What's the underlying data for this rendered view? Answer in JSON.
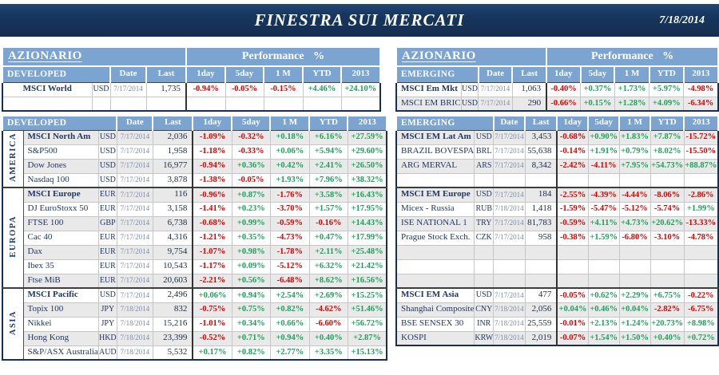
{
  "titlebar": {
    "title": "FINESTRA SUI MERCATI",
    "date": "7/18/2014"
  },
  "colors": {
    "titlebar_navy": "#17375E",
    "header_blue": "#7BA4D0",
    "stripe_gray": "#E9E9E9",
    "negative_red": "#E00000",
    "positive_green": "#1FA15B",
    "name_navy": "#1F3864",
    "date_text": "#7C8DA6",
    "outer_border": "#16304F",
    "dark_divider": "#333333"
  },
  "perf_header": "Performance %",
  "columns": [
    "Date",
    "Last",
    "1day",
    "5day",
    "1 M",
    "YTD",
    "2013"
  ],
  "tables": [
    {
      "id": "developed-summary",
      "title_row": true,
      "section": "AZIONARIO",
      "band": "DEVELOPED",
      "group_col": false,
      "stripe_odd": false,
      "groups": [
        {
          "label": null,
          "rows": [
            {
              "name": "MSCI World",
              "bold": true,
              "center": true,
              "ccy": "USD",
              "date": "7/17/2014",
              "last": "1,735",
              "vals": [
                "-0.94%",
                "-0.05%",
                "-0.15%",
                "+4.46%",
                "+24.10%"
              ]
            },
            {
              "name": "",
              "ccy": "",
              "date": "",
              "last": "",
              "vals": [
                "",
                "",
                "",
                "",
                ""
              ],
              "nostripe": true
            }
          ]
        }
      ]
    },
    {
      "id": "developed-main",
      "title_row": false,
      "band": "DEVELOPED",
      "group_col": true,
      "stripe_odd": true,
      "groups": [
        {
          "label": "AMERICA",
          "rows": [
            {
              "name": "MSCI North Am",
              "bold": true,
              "ccy": "USD",
              "date": "7/17/2014",
              "last": "2,036",
              "vals": [
                "-1.09%",
                "-0.32%",
                "+0.18%",
                "+6.16%",
                "+27.59%"
              ]
            },
            {
              "name": "S&P500",
              "ccy": "USD",
              "date": "7/17/2014",
              "last": "1,958",
              "vals": [
                "-1.18%",
                "-0.33%",
                "+0.06%",
                "+5.94%",
                "+29.60%"
              ]
            },
            {
              "name": "Dow Jones",
              "ccy": "USD",
              "date": "7/17/2014",
              "last": "16,977",
              "vals": [
                "-0.94%",
                "+0.36%",
                "+0.42%",
                "+2.41%",
                "+26.50%"
              ]
            },
            {
              "name": "Nasdaq 100",
              "ccy": "USD",
              "date": "7/17/2014",
              "last": "3,878",
              "vals": [
                "-1.38%",
                "-0.05%",
                "+1.93%",
                "+7.96%",
                "+38.32%"
              ]
            }
          ]
        },
        {
          "label": "EUROPA",
          "rows": [
            {
              "name": "MSCI Europe",
              "bold": true,
              "ccy": "EUR",
              "date": "7/17/2014",
              "last": "116",
              "vals": [
                "-0.96%",
                "+0.87%",
                "-1.76%",
                "+3.58%",
                "+16.43%"
              ]
            },
            {
              "name": "DJ EuroStoxx 50",
              "ccy": "EUR",
              "date": "7/17/2014",
              "last": "3,158",
              "vals": [
                "-1.41%",
                "+0.23%",
                "-3.70%",
                "+1.57%",
                "+17.95%"
              ]
            },
            {
              "name": "FTSE 100",
              "ccy": "GBP",
              "date": "7/17/2014",
              "last": "6,738",
              "vals": [
                "-0.68%",
                "+0.99%",
                "-0.59%",
                "-0.16%",
                "+14.43%"
              ]
            },
            {
              "name": "Cac 40",
              "ccy": "EUR",
              "date": "7/17/2014",
              "last": "4,316",
              "vals": [
                "-1.21%",
                "+0.35%",
                "-4.73%",
                "+0.47%",
                "+17.99%"
              ]
            },
            {
              "name": "Dax",
              "ccy": "EUR",
              "date": "7/17/2014",
              "last": "9,754",
              "vals": [
                "-1.07%",
                "+0.98%",
                "-1.78%",
                "+2.11%",
                "+25.48%"
              ]
            },
            {
              "name": "Ibex 35",
              "ccy": "EUR",
              "date": "7/17/2014",
              "last": "10,543",
              "vals": [
                "-1.17%",
                "+0.09%",
                "-5.12%",
                "+6.32%",
                "+21.42%"
              ]
            },
            {
              "name": "Ftse MiB",
              "ccy": "EUR",
              "date": "7/17/2014",
              "last": "20,603",
              "vals": [
                "-2.21%",
                "+0.56%",
                "-6.48%",
                "+8.62%",
                "+16.56%"
              ]
            }
          ]
        },
        {
          "label": "ASIA",
          "rows": [
            {
              "name": "MSCI Pacific",
              "bold": true,
              "ccy": "USD",
              "date": "7/17/2014",
              "last": "2,496",
              "vals": [
                "+0.06%",
                "+0.94%",
                "+2.54%",
                "+2.69%",
                "+15.25%"
              ]
            },
            {
              "name": "Topix 100",
              "ccy": "JPY",
              "date": "7/18/2014",
              "last": "832",
              "vals": [
                "-0.75%",
                "+0.75%",
                "+0.82%",
                "-4.62%",
                "+51.46%"
              ]
            },
            {
              "name": "Nikkei",
              "ccy": "JPY",
              "date": "7/18/2014",
              "last": "15,216",
              "vals": [
                "-1.01%",
                "+0.34%",
                "+0.66%",
                "-6.60%",
                "+56.72%"
              ]
            },
            {
              "name": "Hong Kong",
              "ccy": "HKD",
              "date": "7/18/2014",
              "last": "23,399",
              "vals": [
                "-0.52%",
                "+0.71%",
                "+0.94%",
                "+0.40%",
                "+2.87%"
              ]
            },
            {
              "name": "S&P/ASX Australia",
              "ccy": "AUD",
              "date": "7/18/2014",
              "last": "5,532",
              "vals": [
                "+0.17%",
                "+0.82%",
                "+2.77%",
                "+3.35%",
                "+15.13%"
              ]
            }
          ]
        }
      ]
    },
    {
      "id": "emerging-summary",
      "title_row": true,
      "section": "AZIONARIO",
      "band": "EMERGING",
      "group_col": false,
      "stripe_odd": false,
      "groups": [
        {
          "label": null,
          "rows": [
            {
              "name": "MSCI Em Mkt",
              "bold": true,
              "ccy": "USD",
              "date": "7/17/2014",
              "last": "1,063",
              "vals": [
                "-0.40%",
                "+0.37%",
                "+1.73%",
                "+5.97%",
                "-4.98%"
              ]
            },
            {
              "name": "MSCI EM BRIC",
              "ccy": "USD",
              "date": "7/17/2014",
              "last": "290",
              "vals": [
                "-0.66%",
                "+0.15%",
                "+1.28%",
                "+4.09%",
                "-6.34%"
              ]
            }
          ]
        }
      ]
    },
    {
      "id": "emerging-main",
      "title_row": false,
      "band": "EMERGING",
      "group_col": false,
      "stripe_odd": true,
      "groups": [
        {
          "label": null,
          "rows": [
            {
              "name": "MSCI EM Lat Am",
              "bold": true,
              "ccy": "USD",
              "date": "7/17/2014",
              "last": "3,453",
              "vals": [
                "-0.68%",
                "+0.90%",
                "+1.83%",
                "+7.87%",
                "-15.72%"
              ]
            },
            {
              "name": "BRAZIL BOVESPA",
              "ccy": "BRL",
              "date": "7/17/2014",
              "last": "55,638",
              "vals": [
                "-0.14%",
                "+1.91%",
                "+0.79%",
                "+8.02%",
                "-15.50%"
              ]
            },
            {
              "name": "ARG MERVAL",
              "ccy": "ARS",
              "date": "7/17/2014",
              "last": "8,342",
              "vals": [
                "-2.42%",
                "-4.11%",
                "+7.95%",
                "+54.73%",
                "+88.87%"
              ]
            },
            {
              "name": "",
              "ccy": "",
              "date": "",
              "last": "",
              "vals": [
                "",
                "",
                "",
                "",
                ""
              ]
            }
          ]
        },
        {
          "label": null,
          "rows": [
            {
              "name": "MSCI EM Europe",
              "bold": true,
              "ccy": "USD",
              "date": "7/17/2014",
              "last": "184",
              "vals": [
                "-2.55%",
                "-4.39%",
                "-4.44%",
                "-8.06%",
                "-2.86%"
              ]
            },
            {
              "name": "Micex - Russia",
              "ccy": "RUB",
              "date": "7/18/2014",
              "last": "1,418",
              "vals": [
                "-1.59%",
                "-5.47%",
                "-5.12%",
                "-5.74%",
                "+1.99%"
              ]
            },
            {
              "name": "ISE NATIONAL 1",
              "ccy": "TRY",
              "date": "7/17/2014",
              "last": "81,783",
              "vals": [
                "-0.59%",
                "+4.11%",
                "+4.73%",
                "+20.62%",
                "-13.33%"
              ]
            },
            {
              "name": "Prague Stock Exch.",
              "ccy": "CZK",
              "date": "7/17/2014",
              "last": "958",
              "vals": [
                "-0.38%",
                "+1.59%",
                "-6.80%",
                "-3.10%",
                "-4.78%"
              ]
            },
            {
              "name": "",
              "ccy": "",
              "date": "",
              "last": "",
              "vals": [
                "",
                "",
                "",
                "",
                ""
              ]
            },
            {
              "name": "",
              "ccy": "",
              "date": "",
              "last": "",
              "vals": [
                "",
                "",
                "",
                "",
                ""
              ]
            },
            {
              "name": "",
              "ccy": "",
              "date": "",
              "last": "",
              "vals": [
                "",
                "",
                "",
                "",
                ""
              ]
            }
          ]
        },
        {
          "label": null,
          "rows": [
            {
              "name": "MSCI EM Asia",
              "bold": true,
              "ccy": "USD",
              "date": "7/17/2014",
              "last": "477",
              "vals": [
                "-0.05%",
                "+0.62%",
                "+2.29%",
                "+6.75%",
                "-0.22%"
              ]
            },
            {
              "name": "Shanghai Composite",
              "ccy": "CNY",
              "date": "7/18/2014",
              "last": "2,056",
              "vals": [
                "+0.04%",
                "+0.46%",
                "+0.04%",
                "-2.82%",
                "-6.75%"
              ]
            },
            {
              "name": "BSE SENSEX 30",
              "ccy": "INR",
              "date": "7/18/2014",
              "last": "25,559",
              "vals": [
                "-0.01%",
                "+2.13%",
                "+1.24%",
                "+20.73%",
                "+8.98%"
              ]
            },
            {
              "name": "KOSPI",
              "ccy": "KRW",
              "date": "7/18/2014",
              "last": "2,019",
              "vals": [
                "-0.07%",
                "+1.54%",
                "+1.50%",
                "+0.40%",
                "+0.72%"
              ]
            }
          ]
        }
      ]
    }
  ]
}
